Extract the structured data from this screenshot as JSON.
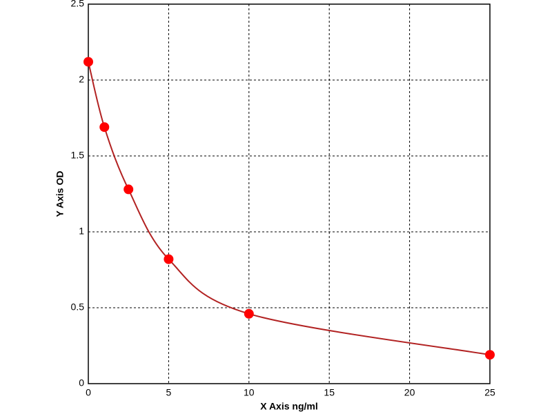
{
  "chart_data": {
    "type": "scatter",
    "x_label": "X Axis ng/ml",
    "y_label": "Y Axis OD",
    "x": [
      0,
      1,
      2.5,
      5,
      10,
      25
    ],
    "values": [
      2.12,
      1.69,
      1.28,
      0.82,
      0.46,
      0.19
    ],
    "color": "#ff0000",
    "line_color": "#b22222",
    "xlim": [
      0,
      25
    ],
    "xticks": [
      0,
      5,
      10,
      15,
      20,
      25
    ],
    "ylim": [
      0,
      2.5
    ],
    "yticks": [
      0,
      0.5,
      1,
      1.5,
      2,
      2.5
    ],
    "grid": true
  }
}
